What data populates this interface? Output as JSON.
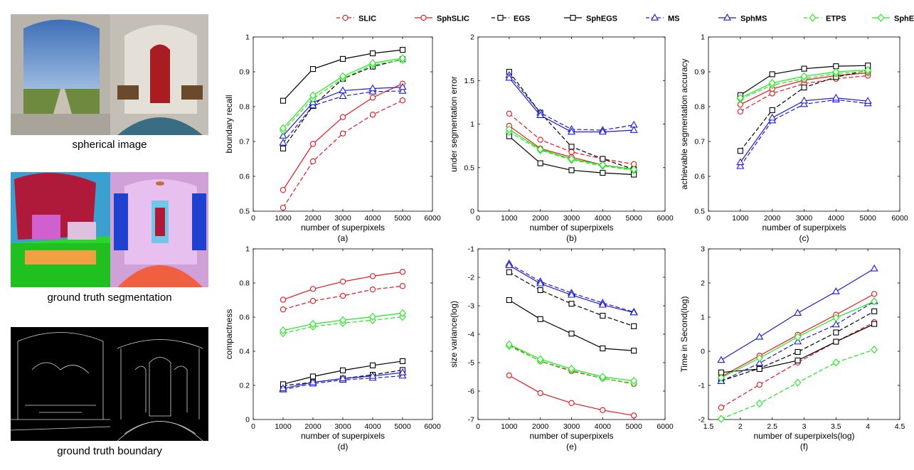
{
  "colors": {
    "SLIC": "#e8141c",
    "EGS": "#000000",
    "MS": "#1a1ad4",
    "ETPS": "#1ee81e"
  },
  "images": [
    {
      "caption": "spherical image",
      "icon": "spherical-panorama-photo"
    },
    {
      "caption": "ground truth segmentation",
      "icon": "segmentation-map"
    },
    {
      "caption": "ground truth boundary",
      "icon": "boundary-edge-map"
    }
  ],
  "legend": {
    "entries": [
      {
        "name": "SLIC",
        "color": "#e8141c",
        "dash": true,
        "marker": "circle"
      },
      {
        "name": "SphSLIC",
        "color": "#e8141c",
        "dash": false,
        "marker": "circle"
      },
      {
        "name": "EGS",
        "color": "#000000",
        "dash": true,
        "marker": "square"
      },
      {
        "name": "SphEGS",
        "color": "#000000",
        "dash": false,
        "marker": "square"
      },
      {
        "name": "MS",
        "color": "#1a1ad4",
        "dash": true,
        "marker": "triangle"
      },
      {
        "name": "SphMS",
        "color": "#1a1ad4",
        "dash": false,
        "marker": "triangle"
      },
      {
        "name": "ETPS",
        "color": "#1ee81e",
        "dash": true,
        "marker": "diamond"
      },
      {
        "name": "SphETPS",
        "color": "#1ee81e",
        "dash": false,
        "marker": "diamond"
      }
    ]
  },
  "chart_data": [
    {
      "type": "line",
      "panel": "(a)",
      "xlabel": "number of superpixels",
      "ylabel": "boundary recall",
      "xlim": [
        0,
        6000
      ],
      "ylim": [
        0.5,
        1
      ],
      "xticks": [
        "0",
        "1000",
        "2000",
        "3000",
        "4000",
        "5000",
        "6000"
      ],
      "yticks": [
        "0.5",
        "0.6",
        "0.7",
        "0.8",
        "0.9",
        "1"
      ],
      "x": [
        1000,
        2000,
        3000,
        4000,
        5000
      ],
      "series": [
        {
          "name": "SLIC",
          "values": [
            0.51,
            0.643,
            0.723,
            0.777,
            0.818
          ]
        },
        {
          "name": "SphSLIC",
          "values": [
            0.561,
            0.693,
            0.77,
            0.826,
            0.866
          ]
        },
        {
          "name": "EGS",
          "values": [
            0.68,
            0.802,
            0.88,
            0.915,
            0.936
          ]
        },
        {
          "name": "SphEGS",
          "values": [
            0.817,
            0.908,
            0.937,
            0.953,
            0.963
          ]
        },
        {
          "name": "MS",
          "values": [
            0.696,
            0.803,
            0.83,
            0.843,
            0.845
          ]
        },
        {
          "name": "SphMS",
          "values": [
            0.716,
            0.812,
            0.846,
            0.852,
            0.856
          ]
        },
        {
          "name": "ETPS",
          "values": [
            0.731,
            0.823,
            0.881,
            0.92,
            0.934
          ]
        },
        {
          "name": "SphETPS",
          "values": [
            0.738,
            0.832,
            0.887,
            0.925,
            0.939
          ]
        }
      ]
    },
    {
      "type": "line",
      "panel": "(b)",
      "xlabel": "number of superpixels",
      "ylabel": "under segmentation error",
      "xlim": [
        0,
        6000
      ],
      "ylim": [
        0,
        2
      ],
      "xticks": [
        "0",
        "1000",
        "2000",
        "3000",
        "4000",
        "5000",
        "6000"
      ],
      "yticks": [
        "0",
        "0.5",
        "1",
        "1.5",
        "2"
      ],
      "x": [
        1000,
        2000,
        3000,
        4000,
        5000
      ],
      "series": [
        {
          "name": "SLIC",
          "values": [
            1.12,
            0.82,
            0.68,
            0.6,
            0.54
          ]
        },
        {
          "name": "SphSLIC",
          "values": [
            0.98,
            0.72,
            0.62,
            0.53,
            0.48
          ]
        },
        {
          "name": "EGS",
          "values": [
            1.6,
            1.13,
            0.74,
            0.6,
            0.48
          ]
        },
        {
          "name": "SphEGS",
          "values": [
            0.86,
            0.55,
            0.47,
            0.44,
            0.42
          ]
        },
        {
          "name": "MS",
          "values": [
            1.56,
            1.13,
            0.94,
            0.93,
            0.99
          ]
        },
        {
          "name": "SphMS",
          "values": [
            1.53,
            1.1,
            0.91,
            0.91,
            0.93
          ]
        },
        {
          "name": "ETPS",
          "values": [
            0.91,
            0.7,
            0.59,
            0.52,
            0.47
          ]
        },
        {
          "name": "SphETPS",
          "values": [
            0.94,
            0.71,
            0.6,
            0.53,
            0.48
          ]
        }
      ]
    },
    {
      "type": "line",
      "panel": "(c)",
      "xlabel": "number of superpixels",
      "ylabel": "achievable segmentation accuracy",
      "xlim": [
        0,
        6000
      ],
      "ylim": [
        0.5,
        1
      ],
      "xticks": [
        "0",
        "1000",
        "2000",
        "3000",
        "4000",
        "5000",
        "6000"
      ],
      "yticks": [
        "0.5",
        "0.6",
        "0.7",
        "0.8",
        "0.9",
        "1"
      ],
      "x": [
        1000,
        2000,
        3000,
        4000,
        5000
      ],
      "series": [
        {
          "name": "SLIC",
          "values": [
            0.786,
            0.838,
            0.866,
            0.88,
            0.889
          ]
        },
        {
          "name": "SphSLIC",
          "values": [
            0.806,
            0.851,
            0.876,
            0.889,
            0.897
          ]
        },
        {
          "name": "EGS",
          "values": [
            0.673,
            0.79,
            0.855,
            0.885,
            0.904
          ]
        },
        {
          "name": "SphEGS",
          "values": [
            0.833,
            0.893,
            0.909,
            0.916,
            0.918
          ]
        },
        {
          "name": "MS",
          "values": [
            0.629,
            0.76,
            0.807,
            0.82,
            0.809
          ]
        },
        {
          "name": "SphMS",
          "values": [
            0.64,
            0.768,
            0.817,
            0.825,
            0.816
          ]
        },
        {
          "name": "ETPS",
          "values": [
            0.822,
            0.862,
            0.88,
            0.895,
            0.901
          ]
        },
        {
          "name": "SphETPS",
          "values": [
            0.825,
            0.868,
            0.887,
            0.9,
            0.905
          ]
        }
      ]
    },
    {
      "type": "line",
      "panel": "(d)",
      "xlabel": "number of superpixels",
      "ylabel": "compactness",
      "xlim": [
        0,
        6000
      ],
      "ylim": [
        0,
        1
      ],
      "xticks": [
        "0",
        "1000",
        "2000",
        "3000",
        "4000",
        "5000",
        "6000"
      ],
      "yticks": [
        "0",
        "0.2",
        "0.4",
        "0.6",
        "0.8",
        "1"
      ],
      "x": [
        1000,
        2000,
        3000,
        4000,
        5000
      ],
      "series": [
        {
          "name": "SLIC",
          "values": [
            0.645,
            0.695,
            0.725,
            0.762,
            0.782
          ]
        },
        {
          "name": "SphSLIC",
          "values": [
            0.702,
            0.765,
            0.808,
            0.84,
            0.865
          ]
        },
        {
          "name": "EGS",
          "values": [
            0.198,
            0.218,
            0.24,
            0.262,
            0.29
          ]
        },
        {
          "name": "SphEGS",
          "values": [
            0.207,
            0.252,
            0.288,
            0.317,
            0.342
          ]
        },
        {
          "name": "MS",
          "values": [
            0.175,
            0.21,
            0.232,
            0.243,
            0.256
          ]
        },
        {
          "name": "SphMS",
          "values": [
            0.182,
            0.218,
            0.24,
            0.255,
            0.275
          ]
        },
        {
          "name": "ETPS",
          "values": [
            0.505,
            0.545,
            0.565,
            0.582,
            0.602
          ]
        },
        {
          "name": "SphETPS",
          "values": [
            0.522,
            0.56,
            0.582,
            0.602,
            0.623
          ]
        }
      ]
    },
    {
      "type": "line",
      "panel": "(e)",
      "xlabel": "number of superpixels",
      "ylabel": "size variance(log)",
      "xlim": [
        0,
        6000
      ],
      "ylim": [
        -7,
        -1
      ],
      "xticks": [
        "0",
        "1000",
        "2000",
        "3000",
        "4000",
        "5000",
        "6000"
      ],
      "yticks": [
        "-7",
        "-6",
        "-5",
        "-4",
        "-3",
        "-2",
        "-1"
      ],
      "x": [
        1000,
        2000,
        3000,
        4000,
        5000
      ],
      "series": [
        {
          "name": "SLIC",
          "values": [
            -4.38,
            -4.95,
            -5.3,
            -5.55,
            -5.75
          ]
        },
        {
          "name": "SphSLIC",
          "values": [
            -5.45,
            -6.07,
            -6.42,
            -6.67,
            -6.86
          ]
        },
        {
          "name": "EGS",
          "values": [
            -1.82,
            -2.45,
            -2.93,
            -3.35,
            -3.72
          ]
        },
        {
          "name": "SphEGS",
          "values": [
            -2.8,
            -3.47,
            -3.98,
            -4.5,
            -4.58
          ]
        },
        {
          "name": "MS",
          "values": [
            -1.52,
            -2.15,
            -2.55,
            -2.9,
            -3.22
          ]
        },
        {
          "name": "SphMS",
          "values": [
            -1.58,
            -2.22,
            -2.62,
            -2.97,
            -3.24
          ]
        },
        {
          "name": "ETPS",
          "values": [
            -4.42,
            -4.94,
            -5.27,
            -5.55,
            -5.73
          ]
        },
        {
          "name": "SphETPS",
          "values": [
            -4.36,
            -4.88,
            -5.22,
            -5.5,
            -5.64
          ]
        }
      ]
    },
    {
      "type": "line",
      "panel": "(f)",
      "xlabel": "number of superpixels(log)",
      "ylabel": "Time in Second(log)",
      "xlim": [
        1.5,
        4.5
      ],
      "ylim": [
        -2,
        3
      ],
      "xticks": [
        "1.5",
        "2",
        "2.5",
        "3",
        "3.5",
        "4",
        "4.5"
      ],
      "yticks": [
        "-2",
        "-1",
        "0",
        "1",
        "2",
        "3"
      ],
      "x": [
        1.7,
        2.3,
        2.9,
        3.5,
        4.1
      ],
      "series": [
        {
          "name": "SLIC",
          "values": [
            -1.65,
            -0.98,
            -0.33,
            0.28,
            0.85
          ]
        },
        {
          "name": "SphSLIC",
          "values": [
            -0.75,
            -0.13,
            0.48,
            1.07,
            1.68
          ]
        },
        {
          "name": "EGS",
          "values": [
            -0.87,
            -0.5,
            -0.02,
            0.55,
            1.17
          ]
        },
        {
          "name": "SphEGS",
          "values": [
            -0.62,
            -0.52,
            -0.27,
            0.28,
            0.8
          ]
        },
        {
          "name": "MS",
          "values": [
            -0.88,
            -0.35,
            0.28,
            0.78,
            1.46
          ]
        },
        {
          "name": "SphMS",
          "values": [
            -0.26,
            0.42,
            1.12,
            1.75,
            2.42
          ]
        },
        {
          "name": "ETPS",
          "values": [
            -1.98,
            -1.53,
            -0.92,
            -0.33,
            0.05
          ]
        },
        {
          "name": "SphETPS",
          "values": [
            -0.78,
            -0.2,
            0.42,
            0.98,
            1.46
          ]
        }
      ]
    }
  ]
}
